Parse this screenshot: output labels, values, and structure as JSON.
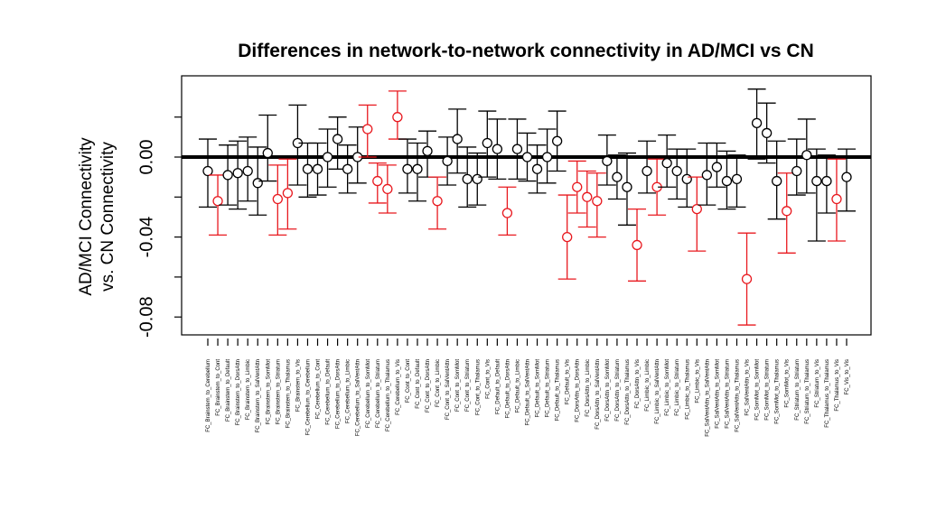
{
  "chart_data": {
    "type": "scatter",
    "title": "Differences in network-to-network connectivity in AD/MCI vs CN",
    "ylabel_lines": [
      "AD/MCI Connectivity",
      "vs. CN Connectivity"
    ],
    "ylim": [
      -0.088,
      0.04
    ],
    "yticks": [
      0.0,
      -0.04,
      -0.08
    ],
    "ytick_labels": [
      "0.00",
      "-0.04",
      "-0.08"
    ],
    "reference_line_y": 0.0,
    "grid": false,
    "legend": "none",
    "colors": {
      "significant": "#e8191f",
      "not_significant": "#000000",
      "axis": "#000000"
    },
    "categories": [
      "FC_Brainstem_to_Cerebellum",
      "FC_Brainstem_to_Cont",
      "FC_Brainstem_to_Default",
      "FC_Brainstem_to_DorsAttn",
      "FC_Brainstem_to_Limbic",
      "FC_Brainstem_to_SalVentAttn",
      "FC_Brainstem_to_SomMot",
      "FC_Brainstem_to_Striatum",
      "FC_Brainstem_to_Thalamus",
      "FC_Brainstem_to_Vis",
      "FC_Cerebellum_to_Cerebellum",
      "FC_Cerebellum_to_Cont",
      "FC_Cerebellum_to_Default",
      "FC_Cerebellum_to_DorsAttn",
      "FC_Cerebellum_to_Limbic",
      "FC_Cerebellum_to_SalVentAttn",
      "FC_Cerebellum_to_SomMot",
      "FC_Cerebellum_to_Striatum",
      "FC_Cerebellum_to_Thalamus",
      "FC_Cerebellum_to_Vis",
      "FC_Cont_to_Cont",
      "FC_Cont_to_Default",
      "FC_Cont_to_DorsAttn",
      "FC_Cont_to_Limbic",
      "FC_Cont_to_SalVentAttn",
      "FC_Cont_to_SomMot",
      "FC_Cont_to_Striatum",
      "FC_Cont_to_Thalamus",
      "FC_Cont_to_Vis",
      "FC_Default_to_Default",
      "FC_Default_to_DorsAttn",
      "FC_Default_to_Limbic",
      "FC_Default_to_SalVentAttn",
      "FC_Default_to_SomMot",
      "FC_Default_to_Striatum",
      "FC_Default_to_Thalamus",
      "FC_Default_to_Vis",
      "FC_DorsAttn_to_DorsAttn",
      "FC_DorsAttn_to_Limbic",
      "FC_DorsAttn_to_SalVentAttn",
      "FC_DorsAttn_to_SomMot",
      "FC_DorsAttn_to_Striatum",
      "FC_DorsAttn_to_Thalamus",
      "FC_DorsAttn_to_Vis",
      "FC_Limbic_to_Limbic",
      "FC_Limbic_to_SalVentAttn",
      "FC_Limbic_to_SomMot",
      "FC_Limbic_to_Striatum",
      "FC_Limbic_to_Thalamus",
      "FC_Limbic_to_Vis",
      "FC_SalVentAttn_to_SalVentAttn",
      "FC_SalVentAttn_to_SomMot",
      "FC_SalVentAttn_to_Striatum",
      "FC_SalVentAttn_to_Thalamus",
      "FC_SalVentAttn_to_Vis",
      "FC_SomMot_to_SomMot",
      "FC_SomMot_to_Striatum",
      "FC_SomMot_to_Thalamus",
      "FC_SomMot_to_Vis",
      "FC_Striatum_to_Striatum",
      "FC_Striatum_to_Thalamus",
      "FC_Striatum_to_Vis",
      "FC_Thalamus_to_Thalamus",
      "FC_Thalamus_to_Vis",
      "FC_Vis_to_Vis"
    ],
    "series": [
      {
        "estimate": [
          -0.007,
          -0.022,
          -0.009,
          -0.008,
          -0.007,
          -0.013,
          0.002,
          -0.021,
          -0.018,
          0.007,
          -0.006,
          -0.006,
          0.0,
          0.009,
          -0.006,
          0.0,
          0.014,
          -0.012,
          -0.016,
          0.02,
          -0.006,
          -0.006,
          0.003,
          -0.022,
          -0.002,
          0.009,
          -0.011,
          -0.011,
          0.007,
          0.004,
          -0.028,
          0.004,
          0.0,
          -0.006,
          0.0,
          0.008,
          -0.04,
          -0.015,
          -0.02,
          -0.022,
          -0.002,
          -0.01,
          -0.015,
          -0.044,
          -0.007,
          -0.015,
          -0.003,
          -0.007,
          -0.011,
          -0.026,
          -0.009,
          -0.005,
          -0.012,
          -0.011,
          -0.061,
          0.017,
          0.012,
          -0.012,
          -0.027,
          -0.007,
          0.001,
          -0.012,
          -0.012,
          -0.021,
          -0.01
        ],
        "lower": [
          -0.025,
          -0.039,
          -0.024,
          -0.026,
          -0.022,
          -0.029,
          -0.012,
          -0.039,
          -0.036,
          -0.014,
          -0.02,
          -0.019,
          -0.015,
          -0.006,
          -0.018,
          -0.013,
          0.0,
          -0.023,
          -0.028,
          0.009,
          -0.018,
          -0.022,
          -0.01,
          -0.036,
          -0.014,
          -0.008,
          -0.025,
          -0.024,
          -0.01,
          -0.011,
          -0.039,
          -0.011,
          -0.012,
          -0.018,
          -0.013,
          -0.007,
          -0.061,
          -0.028,
          -0.035,
          -0.04,
          -0.014,
          -0.021,
          -0.034,
          -0.062,
          -0.018,
          -0.029,
          -0.015,
          -0.021,
          -0.025,
          -0.047,
          -0.024,
          -0.015,
          -0.026,
          -0.025,
          -0.084,
          -0.001,
          -0.003,
          -0.031,
          -0.048,
          -0.019,
          -0.018,
          -0.042,
          -0.028,
          -0.042,
          -0.027
        ],
        "upper": [
          0.009,
          -0.009,
          0.006,
          0.008,
          0.01,
          0.005,
          0.021,
          -0.004,
          -0.001,
          0.026,
          0.007,
          0.007,
          0.014,
          0.02,
          0.006,
          0.015,
          0.026,
          -0.003,
          -0.004,
          0.033,
          0.009,
          0.007,
          0.013,
          -0.01,
          0.01,
          0.024,
          0.005,
          0.002,
          0.023,
          0.019,
          -0.015,
          0.019,
          0.012,
          0.006,
          0.014,
          0.023,
          -0.019,
          -0.002,
          -0.007,
          -0.008,
          0.011,
          0.001,
          0.002,
          -0.026,
          0.008,
          -0.001,
          0.011,
          0.004,
          0.004,
          -0.01,
          0.007,
          0.007,
          0.003,
          0.001,
          -0.038,
          0.034,
          0.027,
          0.008,
          -0.008,
          0.009,
          0.019,
          0.004,
          0.001,
          -0.001,
          0.004
        ],
        "significant": [
          false,
          true,
          false,
          false,
          false,
          false,
          false,
          true,
          true,
          false,
          false,
          false,
          false,
          false,
          false,
          false,
          true,
          true,
          true,
          true,
          false,
          false,
          false,
          true,
          false,
          false,
          false,
          false,
          false,
          false,
          true,
          false,
          false,
          false,
          false,
          false,
          true,
          true,
          true,
          true,
          false,
          false,
          false,
          true,
          false,
          true,
          false,
          false,
          false,
          true,
          false,
          false,
          false,
          false,
          true,
          false,
          false,
          false,
          true,
          false,
          false,
          false,
          false,
          true,
          false
        ]
      }
    ]
  }
}
